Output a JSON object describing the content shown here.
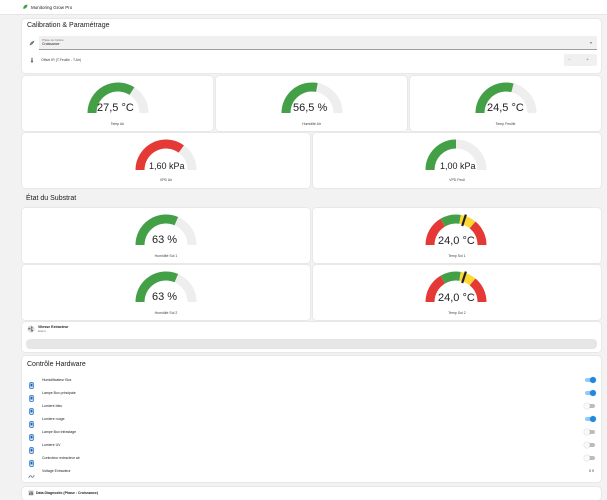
{
  "app": {
    "title": "Monitoring Grow Pro"
  },
  "calibration": {
    "title": "Calibration & Paramétrage",
    "phase_label": "Phase de Culture",
    "phase_value": "Croissance",
    "offset_label": "Offset IR (T.Feuille - T.Air)"
  },
  "gauges": {
    "temp_air": {
      "value_text": "27,5 °C",
      "label": "Temp Air",
      "fraction": 0.68,
      "color": "#43a047"
    },
    "hum_air": {
      "value_text": "56,5 %",
      "label": "Humidité Air",
      "fraction": 0.56,
      "color": "#43a047"
    },
    "temp_leaf": {
      "value_text": "24,5 °C",
      "label": "Temp Feuille",
      "fraction": 0.58,
      "color": "#43a047"
    },
    "vpd_air": {
      "value_text": "1,60 kPa",
      "label": "VPD Air",
      "fraction": 0.7,
      "color": "#e53935"
    },
    "vpd_leaf": {
      "value_text": "1,00 kPa",
      "label": "VPD Feuil",
      "fraction": 0.5,
      "color": "#43a047"
    },
    "hum_soil1": {
      "value_text": "63 %",
      "label": "Humidité Sol 1",
      "fraction": 0.63,
      "color": "#43a047"
    },
    "temp_soil1": {
      "value_text": "24,0 °C",
      "label": "Temp Sol 1",
      "needle": 0.6
    },
    "hum_soil2": {
      "value_text": "63 %",
      "label": "Humidité Sol 2",
      "fraction": 0.63,
      "color": "#43a047"
    },
    "temp_soil2": {
      "value_text": "24,0 °C",
      "label": "Temp Sol 2",
      "needle": 0.6
    }
  },
  "substrate": {
    "title": "État du Substrat"
  },
  "extractor": {
    "title": "Vitesse Extracteur",
    "subtitle": "Eteint"
  },
  "hardware": {
    "title": "Contrôle Hardware",
    "items": [
      {
        "label": "Humidificateur Box",
        "state": "on",
        "icon": "humidifier-icon"
      },
      {
        "label": "Lampe Box principale",
        "state": "on",
        "icon": "lamp-icon"
      },
      {
        "label": "Lumiere bleu",
        "state": "off",
        "icon": "light-icon"
      },
      {
        "label": "Lumiere rouge",
        "state": "on",
        "icon": "light-icon"
      },
      {
        "label": "Lampe Box infrastage",
        "state": "off",
        "icon": "lamp-icon"
      },
      {
        "label": "Lumiere UV",
        "state": "off",
        "icon": "uv-light-icon"
      },
      {
        "label": "Controleur extracteur air",
        "state": "off",
        "icon": "fan-icon"
      }
    ],
    "voltage_label": "Voltage Extracteur",
    "voltage_value": "0 V"
  },
  "diagnostic": {
    "title": "Data Diagnostic (Phase : Croissance)"
  },
  "colors": {
    "accent": "#1e88e5",
    "green": "#43a047",
    "red": "#e53935",
    "yellow": "#fdd835",
    "track": "#eeeeee"
  }
}
